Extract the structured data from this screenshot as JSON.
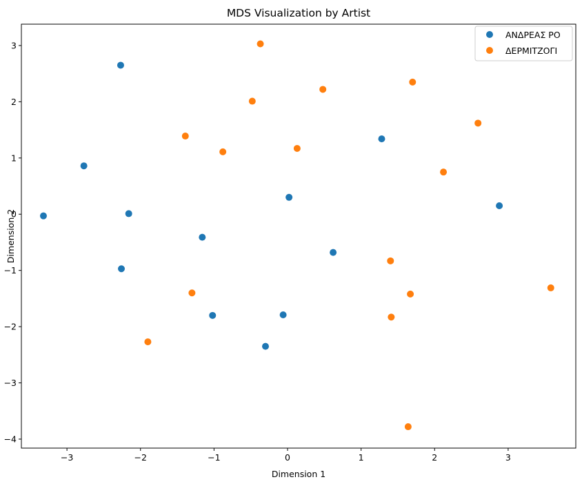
{
  "chart_data": {
    "type": "scatter",
    "title": "MDS Visualization by Artist",
    "xlabel": "Dimension 1",
    "ylabel": "Dimension 2",
    "xlim": [
      -3.62,
      3.92
    ],
    "ylim": [
      -4.16,
      3.38
    ],
    "xticks": [
      -3,
      -2,
      -1,
      0,
      1,
      2,
      3
    ],
    "yticks": [
      -4,
      -3,
      -2,
      -1,
      0,
      1,
      2,
      3
    ],
    "xtick_labels": [
      "−3",
      "−2",
      "−1",
      "0",
      "1",
      "2",
      "3"
    ],
    "ytick_labels": [
      "−4",
      "−3",
      "−2",
      "−1",
      "0",
      "1",
      "2",
      "3"
    ],
    "grid": false,
    "legend": "top-right",
    "series": [
      {
        "name": "ΑΝΔΡΕΑΣ ΡΟ",
        "color": "#1f77b4",
        "points": [
          [
            -2.27,
            2.65
          ],
          [
            -2.77,
            0.86
          ],
          [
            -3.32,
            -0.03
          ],
          [
            -2.16,
            0.01
          ],
          [
            -1.16,
            -0.41
          ],
          [
            -2.26,
            -0.97
          ],
          [
            -1.02,
            -1.8
          ],
          [
            -0.06,
            -1.79
          ],
          [
            -0.3,
            -2.35
          ],
          [
            0.02,
            0.3
          ],
          [
            0.62,
            -0.68
          ],
          [
            1.28,
            1.34
          ],
          [
            2.88,
            0.15
          ]
        ]
      },
      {
        "name": "ΔΕΡΜΙΤΖΟΓΙ",
        "color": "#ff7f0e",
        "points": [
          [
            -0.37,
            3.03
          ],
          [
            -0.48,
            2.01
          ],
          [
            -1.39,
            1.39
          ],
          [
            -0.88,
            1.11
          ],
          [
            0.13,
            1.17
          ],
          [
            0.48,
            2.22
          ],
          [
            1.7,
            2.35
          ],
          [
            2.59,
            1.62
          ],
          [
            2.12,
            0.75
          ],
          [
            1.4,
            -0.83
          ],
          [
            1.67,
            -1.42
          ],
          [
            1.41,
            -1.83
          ],
          [
            3.58,
            -1.31
          ],
          [
            1.64,
            -3.78
          ],
          [
            -1.3,
            -1.4
          ],
          [
            -1.9,
            -2.27
          ]
        ]
      }
    ]
  }
}
